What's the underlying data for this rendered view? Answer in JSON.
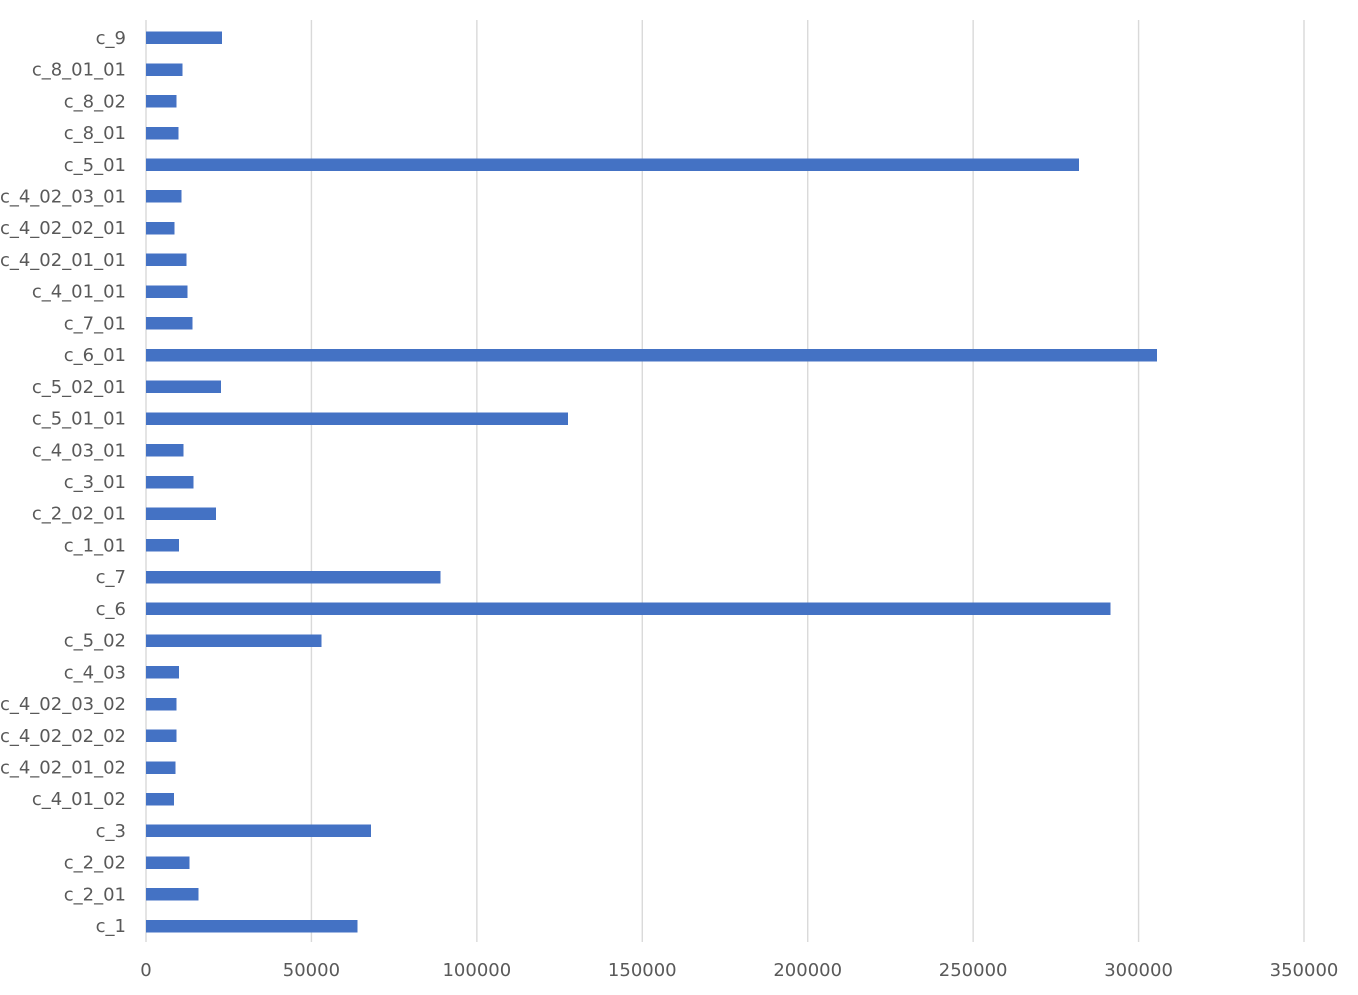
{
  "chart_data": {
    "type": "bar",
    "orientation": "horizontal",
    "title": "",
    "xlabel": "",
    "ylabel": "",
    "xlim": [
      0,
      350000
    ],
    "x_ticks": [
      0,
      50000,
      100000,
      150000,
      200000,
      250000,
      300000,
      350000
    ],
    "x_tick_labels": [
      "0",
      "50000",
      "100000",
      "150000",
      "200000",
      "250000",
      "300000",
      "350000"
    ],
    "grid": true,
    "legend": "none",
    "bar_color": "#4472c4",
    "categories": [
      "c_9",
      "c_8_01_01",
      "c_8_02",
      "c_8_01",
      "c_5_01",
      "c_4_02_03_01",
      "c_4_02_02_01",
      "c_4_02_01_01",
      "c_4_01_01",
      "c_7_01",
      "c_6_01",
      "c_5_02_01",
      "c_5_01_01",
      "c_4_03_01",
      "c_3_01",
      "c_2_02_01",
      "c_1_01",
      "c_7",
      "c_6",
      "c_5_02",
      "c_4_03",
      "c_4_02_03_02",
      "c_4_02_02_02",
      "c_4_02_01_02",
      "c_4_01_02",
      "c_3",
      "c_2_02",
      "c_2_01",
      "c_1"
    ],
    "values": [
      23000,
      11000,
      9200,
      9800,
      282000,
      10800,
      8600,
      12200,
      12500,
      14000,
      305500,
      22700,
      127500,
      11300,
      14300,
      21200,
      10000,
      89000,
      291500,
      53000,
      10000,
      9200,
      9200,
      8900,
      8400,
      68000,
      13200,
      15800,
      64000
    ]
  }
}
